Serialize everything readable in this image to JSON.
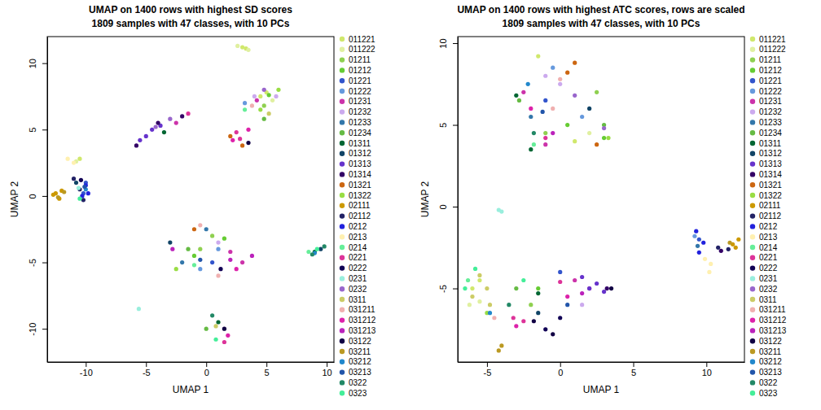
{
  "chart_data": [
    {
      "type": "scatter",
      "title": [
        "UMAP on 1400 rows with highest SD scores",
        "1809 samples with 47 classes, with 10 PCs"
      ],
      "x_label": "UMAP 1",
      "y_label": "UMAP 2",
      "xlim": [
        -13.2,
        10.6
      ],
      "ylim": [
        -12.5,
        12.0
      ],
      "xticks": [
        -10,
        -5,
        0,
        5,
        10
      ],
      "yticks": [
        -10,
        -5,
        0,
        5,
        10
      ],
      "legend": "right",
      "series": [
        {
          "name": "011221",
          "color": "#d0e86c",
          "x": [
            3.0,
            3.3,
            4.5,
            5.0,
            -10.5
          ],
          "values": [
            11.2,
            11.1,
            7.5,
            7.8,
            2.8
          ]
        },
        {
          "name": "011222",
          "color": "#e0f0a0",
          "x": [
            3.5,
            5.5,
            -10.8,
            2.6
          ],
          "values": [
            11.0,
            7.2,
            2.6,
            11.3
          ]
        },
        {
          "name": "01211",
          "color": "#8fd050",
          "x": [
            4.8,
            -0.5,
            0.5
          ],
          "values": [
            6.8,
            -4,
            -3
          ]
        },
        {
          "name": "01212",
          "color": "#66cc33",
          "x": [
            -1,
            1.5,
            5.2
          ],
          "values": [
            -4.5,
            -3.2,
            7.6
          ]
        },
        {
          "name": "01221",
          "color": "#3355cc",
          "x": [
            -10.2,
            -10,
            0.5
          ],
          "values": [
            0.2,
            1,
            -5
          ]
        },
        {
          "name": "01222",
          "color": "#6699dd",
          "x": [
            -0.5,
            1,
            3.2
          ],
          "values": [
            -5.5,
            -4,
            7
          ]
        },
        {
          "name": "01231",
          "color": "#cc33aa",
          "x": [
            -2.5,
            2,
            4.2,
            3
          ],
          "values": [
            5.5,
            -4.2,
            7.2,
            -5
          ]
        },
        {
          "name": "01232",
          "color": "#ccaaee",
          "x": [
            4,
            5.8,
            1
          ],
          "values": [
            7.5,
            7.5,
            -3.5
          ]
        },
        {
          "name": "01233",
          "color": "#3377aa",
          "x": [
            -2,
            0
          ],
          "values": [
            -5,
            -2.5
          ]
        },
        {
          "name": "01234",
          "color": "#66bb44",
          "x": [
            -1.5,
            4.8,
            0
          ],
          "values": [
            -4,
            5.8,
            -10
          ]
        },
        {
          "name": "01311",
          "color": "#006633",
          "x": [
            1,
            9,
            -3.5
          ],
          "values": [
            -9.5,
            -4.2,
            4.8
          ]
        },
        {
          "name": "01312",
          "color": "#114466",
          "x": [
            9.5,
            -3,
            -10.8
          ],
          "values": [
            -4,
            -3.5,
            1
          ]
        },
        {
          "name": "01313",
          "color": "#6633cc",
          "x": [
            -5.5,
            -4.5,
            -3.8,
            -5
          ],
          "values": [
            4.2,
            5,
            5.3,
            4.5
          ]
        },
        {
          "name": "01314",
          "color": "#330066",
          "x": [
            -4,
            -2,
            -5.8
          ],
          "values": [
            5.5,
            6.0,
            3.8
          ]
        },
        {
          "name": "01321",
          "color": "#cc6611",
          "x": [
            2,
            3,
            -1
          ],
          "values": [
            4.5,
            3.8,
            -2.5
          ]
        },
        {
          "name": "01322",
          "color": "#99dd44",
          "x": [
            4.5,
            6,
            -2.5
          ],
          "values": [
            6.5,
            8,
            -5.5
          ]
        },
        {
          "name": "02111",
          "color": "#cc9900",
          "x": [
            -12.5,
            -12.2,
            -12.7,
            -12
          ],
          "values": [
            0.2,
            -0.2,
            0.1,
            0.4
          ]
        },
        {
          "name": "02112",
          "color": "#222266",
          "x": [
            -10.5,
            -10.2,
            -11
          ],
          "values": [
            0.5,
            -0.3,
            1.3
          ]
        },
        {
          "name": "0212",
          "color": "#2222dd",
          "x": [
            -10,
            -10.3,
            -9.8
          ],
          "values": [
            0.8,
            0,
            0.2
          ]
        },
        {
          "name": "0213",
          "color": "#fff0b0",
          "x": [
            -11,
            -11.5
          ],
          "values": [
            2.5,
            2.8
          ]
        },
        {
          "name": "0214",
          "color": "#66ee99",
          "x": [
            8.5,
            3.2,
            -1
          ],
          "values": [
            -4.2,
            6.5,
            -5.2
          ]
        },
        {
          "name": "0221",
          "color": "#dd3399",
          "x": [
            -1.5,
            2.5,
            2.8,
            1.5
          ],
          "values": [
            6.2,
            4.8,
            4.3,
            -11
          ]
        },
        {
          "name": "0222",
          "color": "#110055",
          "x": [
            -10.4,
            1.2
          ],
          "values": [
            1.2,
            -5.5
          ]
        },
        {
          "name": "0231",
          "color": "#99eedd",
          "x": [
            -5.6,
            -10.6
          ],
          "values": [
            -8.5,
            0.6
          ]
        },
        {
          "name": "0232",
          "color": "#9966cc",
          "x": [
            -3,
            -4.2,
            4.8
          ],
          "values": [
            5.8,
            5.2,
            8
          ]
        },
        {
          "name": "0311",
          "color": "#cccc66",
          "x": [
            5.2,
            0.8
          ],
          "values": [
            6.2,
            -9.8
          ]
        },
        {
          "name": "031211",
          "color": "#f0b0b0",
          "x": [
            3.8,
            -0.5,
            1
          ],
          "values": [
            6.8,
            -2.2,
            -6
          ]
        },
        {
          "name": "031212",
          "color": "#dd22aa",
          "x": [
            2.2,
            3.5,
            2.5,
            1.8
          ],
          "values": [
            4.2,
            5,
            -5.5,
            -10.5
          ]
        },
        {
          "name": "031213",
          "color": "#bb22bb",
          "x": [
            2,
            3.8,
            -2.8
          ],
          "values": [
            -4.8,
            -4.5,
            -4
          ]
        },
        {
          "name": "03122",
          "color": "#110044",
          "x": [
            3.5,
            1.5
          ],
          "values": [
            4,
            -10
          ]
        },
        {
          "name": "03211",
          "color": "#bb9922",
          "x": [
            -12.3,
            -11.8
          ],
          "values": [
            -0.1,
            0.3
          ]
        },
        {
          "name": "03212",
          "color": "#2288cc",
          "x": [
            9,
            -10
          ],
          "values": [
            -4.3,
            0.5
          ]
        },
        {
          "name": "03213",
          "color": "#2255aa",
          "x": [
            -10.1,
            -0.5
          ],
          "values": [
            0.7,
            -4.8
          ]
        },
        {
          "name": "0322",
          "color": "#228866",
          "x": [
            9.8,
            8.8,
            0.5
          ],
          "values": [
            -3.8,
            -4.4,
            -9
          ]
        },
        {
          "name": "0323",
          "color": "#44ee99",
          "x": [
            -10.5,
            0.8,
            9.2
          ],
          "values": [
            -0.2,
            -10.8,
            -4
          ]
        }
      ]
    },
    {
      "type": "scatter",
      "title": [
        "UMAP on 1400 rows with highest ATC scores, rows are scaled",
        "1809 samples with 47 classes, with 10 PCs"
      ],
      "x_label": "UMAP 1",
      "y_label": "UMAP 2",
      "xlim": [
        -7.0,
        12.6
      ],
      "ylim": [
        -9.5,
        10.4
      ],
      "xticks": [
        -5,
        0,
        5,
        10
      ],
      "yticks": [
        -5,
        0,
        5,
        10
      ],
      "legend": "right",
      "series": [
        {
          "name": "011221",
          "color": "#d0e86c",
          "x": [
            -1.5,
            -6,
            -5.5,
            1
          ],
          "values": [
            9.2,
            -5,
            -4.5,
            4
          ]
        },
        {
          "name": "011222",
          "color": "#e0f0a0",
          "x": [
            -5.5,
            -6.2,
            2
          ],
          "values": [
            -5.8,
            -6,
            4.5
          ]
        },
        {
          "name": "01211",
          "color": "#8fd050",
          "x": [
            -1,
            2.5,
            -2
          ],
          "values": [
            4.5,
            7,
            -6
          ]
        },
        {
          "name": "01212",
          "color": "#66cc33",
          "x": [
            0.5,
            3,
            -1.5
          ],
          "values": [
            5,
            4.2,
            -5
          ]
        },
        {
          "name": "01221",
          "color": "#3355cc",
          "x": [
            9.5,
            -1,
            0
          ],
          "values": [
            -2,
            6.5,
            -4
          ]
        },
        {
          "name": "01222",
          "color": "#6699dd",
          "x": [
            -0.5,
            1.5,
            9.2
          ],
          "values": [
            8.5,
            5.5,
            -1.8
          ]
        },
        {
          "name": "01231",
          "color": "#cc33aa",
          "x": [
            -2.5,
            2,
            1,
            -1
          ],
          "values": [
            7,
            -5,
            -4.5,
            3.8
          ]
        },
        {
          "name": "01232",
          "color": "#ccaaee",
          "x": [
            -1,
            0,
            1.5
          ],
          "values": [
            8,
            7.5,
            -6
          ]
        },
        {
          "name": "01233",
          "color": "#3377aa",
          "x": [
            -2,
            9.4
          ],
          "values": [
            5.5,
            -2.4
          ]
        },
        {
          "name": "01234",
          "color": "#66bb44",
          "x": [
            -2.8,
            3,
            -3
          ],
          "values": [
            6.5,
            5,
            -5
          ]
        },
        {
          "name": "01311",
          "color": "#006633",
          "x": [
            -3,
            -2,
            -1.5
          ],
          "values": [
            6.8,
            3.5,
            -5.3
          ]
        },
        {
          "name": "01312",
          "color": "#114466",
          "x": [
            2,
            -1.5
          ],
          "values": [
            6,
            -6.5
          ]
        },
        {
          "name": "01313",
          "color": "#6633cc",
          "x": [
            2,
            3,
            1.5,
            2.5
          ],
          "values": [
            -5,
            -5.2,
            -4.3,
            -4.7
          ]
        },
        {
          "name": "01314",
          "color": "#330066",
          "x": [
            11,
            3.2
          ],
          "values": [
            -2.7,
            -5
          ]
        },
        {
          "name": "01321",
          "color": "#cc6611",
          "x": [
            1,
            2.5,
            0.5
          ],
          "values": [
            8.8,
            3.8,
            8.2
          ]
        },
        {
          "name": "01322",
          "color": "#99dd44",
          "x": [
            3.3,
            -5
          ],
          "values": [
            4.2,
            -6.5
          ]
        },
        {
          "name": "02111",
          "color": "#cc9900",
          "x": [
            12,
            12.2,
            11.8
          ],
          "values": [
            -2.5,
            -2,
            -2.3
          ]
        },
        {
          "name": "02112",
          "color": "#222266",
          "x": [
            10.8,
            11.5
          ],
          "values": [
            -2.5,
            -2.6
          ]
        },
        {
          "name": "0212",
          "color": "#2222dd",
          "x": [
            9.3,
            9.5,
            9.8
          ],
          "values": [
            -1.5,
            -2.8,
            -2.2
          ]
        },
        {
          "name": "0213",
          "color": "#fff0b0",
          "x": [
            10.2,
            10.3,
            9.9
          ],
          "values": [
            -4,
            -3.5,
            -3.2
          ]
        },
        {
          "name": "0214",
          "color": "#66ee99",
          "x": [
            -6.3,
            -1.8
          ],
          "values": [
            -4.5,
            3.8
          ]
        },
        {
          "name": "0221",
          "color": "#dd3399",
          "x": [
            -2.5,
            -3.2,
            0,
            -1
          ],
          "values": [
            -7,
            -6.8,
            -4.6,
            4.2
          ]
        },
        {
          "name": "0222",
          "color": "#110055",
          "x": [
            -1,
            0
          ],
          "values": [
            -7.5,
            -6.8
          ]
        },
        {
          "name": "0231",
          "color": "#99eedd",
          "x": [
            -4,
            -4.2
          ],
          "values": [
            -0.3,
            -0.2
          ]
        },
        {
          "name": "0232",
          "color": "#9966cc",
          "x": [
            3,
            1
          ],
          "values": [
            4.8,
            6.8
          ]
        },
        {
          "name": "0311",
          "color": "#cccc66",
          "x": [
            -6,
            -5,
            -5.5,
            -4.8
          ],
          "values": [
            -5.5,
            -5,
            -4.2,
            -6
          ]
        },
        {
          "name": "031211",
          "color": "#f0b0b0",
          "x": [
            0,
            -0.5,
            -4.5
          ],
          "values": [
            7.8,
            6,
            -6.8
          ]
        },
        {
          "name": "031212",
          "color": "#dd22aa",
          "x": [
            -3,
            0.5,
            -2
          ],
          "values": [
            -7.3,
            -5.5,
            6
          ]
        },
        {
          "name": "031213",
          "color": "#bb22bb",
          "x": [
            1.5,
            -0.5
          ],
          "values": [
            -5.3,
            4.5
          ]
        },
        {
          "name": "03122",
          "color": "#110044",
          "x": [
            -0.5,
            -1.8,
            3.5
          ],
          "values": [
            -7.8,
            -7,
            -5
          ]
        },
        {
          "name": "03211",
          "color": "#bb9922",
          "x": [
            -4,
            -4.2,
            11.6
          ],
          "values": [
            -8.5,
            -8.8,
            -2.2
          ]
        },
        {
          "name": "03212",
          "color": "#2288cc",
          "x": [
            -2.2,
            -4.8
          ],
          "values": [
            7.5,
            -6.5
          ]
        },
        {
          "name": "03213",
          "color": "#2255aa",
          "x": [
            -1.2,
            0.5
          ],
          "values": [
            5.8,
            -6
          ]
        },
        {
          "name": "0322",
          "color": "#228866",
          "x": [
            -1.8,
            -3.5
          ],
          "values": [
            4.5,
            -6
          ]
        },
        {
          "name": "0323",
          "color": "#44ee99",
          "x": [
            -6.5,
            -5.8,
            -2.5
          ],
          "values": [
            -5,
            -3.8,
            -4.5
          ]
        }
      ]
    }
  ]
}
